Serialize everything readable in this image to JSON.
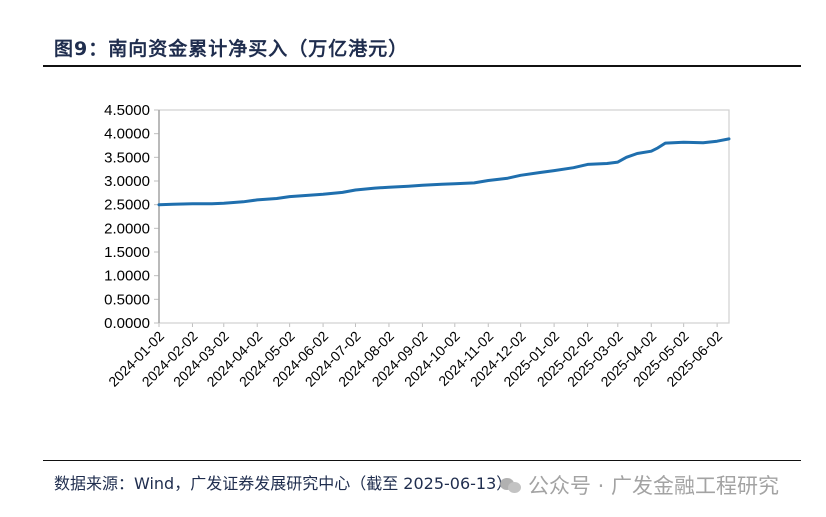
{
  "figure": {
    "title": "图9：南向资金累计净买入（万亿港元）",
    "source": "数据来源：Wind，广发证券发展研究中心（截至 2025-06-13）",
    "watermark": "公众号 · 广发金融工程研究"
  },
  "colors": {
    "line": "#1f6fae",
    "axis": "#bfbfbf",
    "text": "#000000",
    "title": "#1f2d4e"
  },
  "chart_data": {
    "type": "line",
    "title": "南向资金累计净买入（万亿港元）",
    "xlabel": "",
    "ylabel": "",
    "ylim": [
      0,
      4.5
    ],
    "yticks": [
      "0.0000",
      "0.5000",
      "1.0000",
      "1.5000",
      "2.0000",
      "2.5000",
      "3.0000",
      "3.5000",
      "4.0000",
      "4.5000"
    ],
    "categories": [
      "2024-01-02",
      "2024-02-02",
      "2024-03-02",
      "2024-04-02",
      "2024-05-02",
      "2024-06-02",
      "2024-07-02",
      "2024-08-02",
      "2024-09-02",
      "2024-10-02",
      "2024-11-02",
      "2024-12-02",
      "2025-01-02",
      "2025-02-02",
      "2025-03-02",
      "2025-04-02",
      "2025-05-02",
      "2025-06-02"
    ],
    "grid": false,
    "legend": "none",
    "series": [
      {
        "name": "南向资金累计净买入",
        "x": [
          "2024-01-02",
          "2024-01-15",
          "2024-02-02",
          "2024-02-20",
          "2024-03-02",
          "2024-03-20",
          "2024-04-02",
          "2024-04-20",
          "2024-05-02",
          "2024-05-20",
          "2024-06-02",
          "2024-06-20",
          "2024-07-02",
          "2024-07-20",
          "2024-08-02",
          "2024-08-20",
          "2024-09-02",
          "2024-09-20",
          "2024-10-02",
          "2024-10-20",
          "2024-11-02",
          "2024-11-20",
          "2024-12-02",
          "2024-12-20",
          "2025-01-02",
          "2025-01-20",
          "2025-02-02",
          "2025-02-20",
          "2025-03-02",
          "2025-03-10",
          "2025-03-20",
          "2025-04-02",
          "2025-04-08",
          "2025-04-15",
          "2025-05-02",
          "2025-05-20",
          "2025-06-02",
          "2025-06-13"
        ],
        "values": [
          2.5,
          2.51,
          2.52,
          2.52,
          2.53,
          2.56,
          2.6,
          2.63,
          2.67,
          2.7,
          2.72,
          2.76,
          2.81,
          2.85,
          2.87,
          2.89,
          2.91,
          2.93,
          2.94,
          2.96,
          3.01,
          3.06,
          3.12,
          3.18,
          3.22,
          3.28,
          3.35,
          3.37,
          3.4,
          3.5,
          3.58,
          3.63,
          3.7,
          3.8,
          3.82,
          3.81,
          3.84,
          3.89
        ]
      }
    ]
  }
}
